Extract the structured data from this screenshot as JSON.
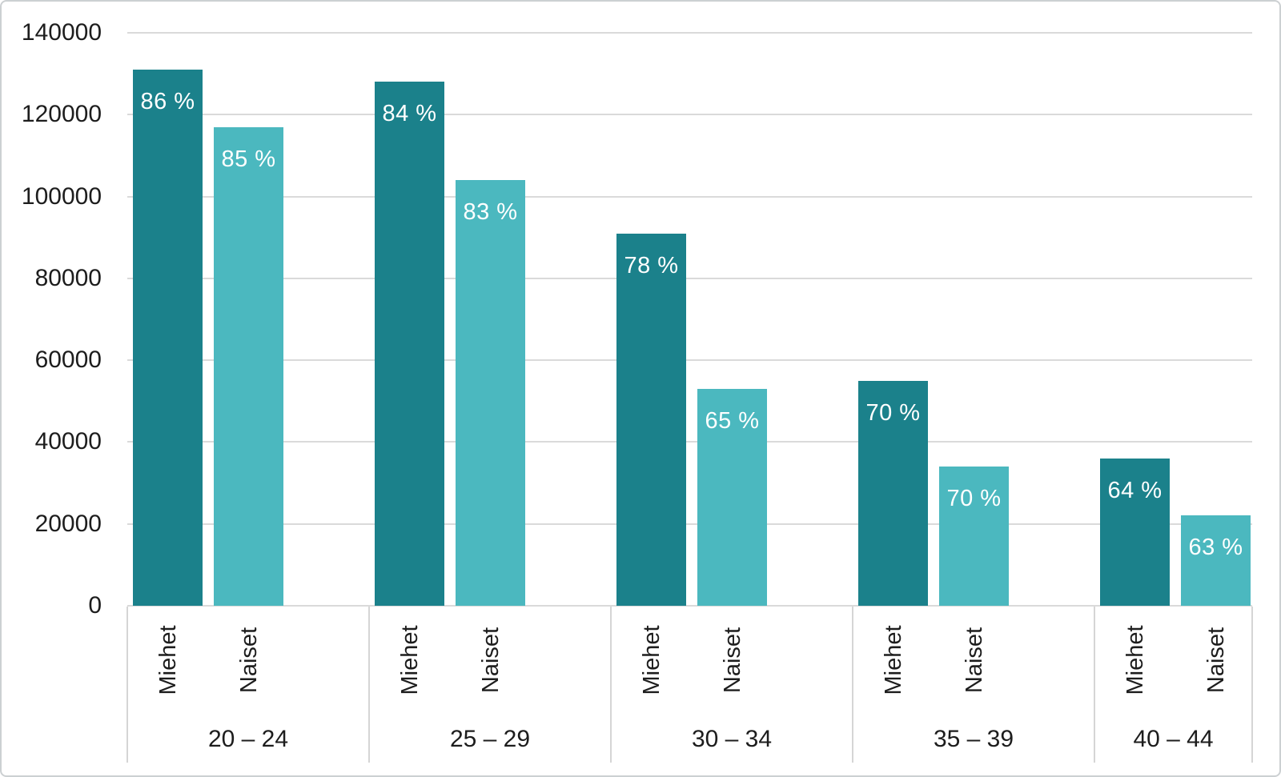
{
  "chart_data": {
    "type": "bar",
    "title": "",
    "xlabel": "",
    "ylabel": "",
    "categories": [
      "20 – 24",
      "25 – 29",
      "30 – 34",
      "35 – 39",
      "40 – 44"
    ],
    "series": [
      {
        "name": "Miehet",
        "color": "#1b818b",
        "values": [
          131000,
          128000,
          91000,
          55000,
          36000
        ],
        "bar_labels": [
          "86 %",
          "84 %",
          "78 %",
          "70 %",
          "64 %"
        ]
      },
      {
        "name": "Naiset",
        "color": "#4bb8bf",
        "values": [
          117000,
          104000,
          53000,
          34000,
          22000
        ],
        "bar_labels": [
          "85 %",
          "83 %",
          "65 %",
          "70 %",
          "63 %"
        ]
      }
    ],
    "ylim": [
      0,
      140000
    ],
    "ytick_step": 20000,
    "ytick_labels": [
      "0",
      "20000",
      "40000",
      "60000",
      "80000",
      "100000",
      "120000",
      "140000"
    ],
    "grid": true,
    "legend": "none",
    "bar_label_color": "#ffffff",
    "text_color": "#1d1d1d",
    "gridline_color": "#dadada"
  }
}
